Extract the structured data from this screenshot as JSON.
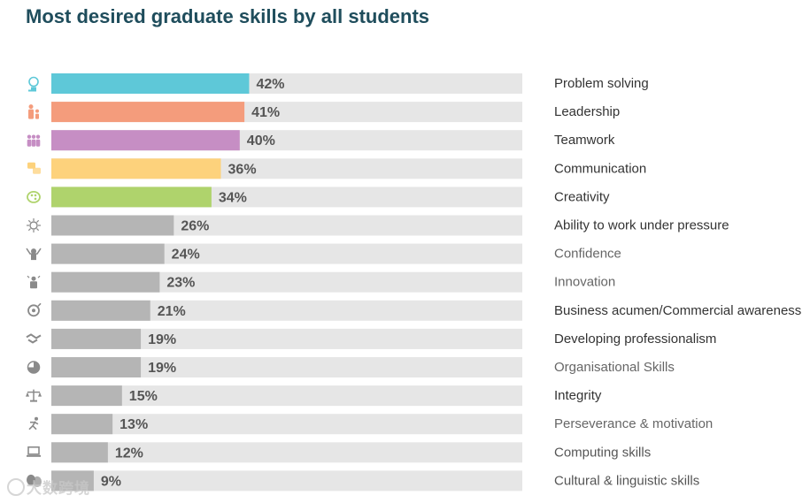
{
  "chart_data": {
    "type": "bar",
    "orientation": "horizontal",
    "title": "Most desired graduate skills by all students",
    "categories": [
      "Problem solving",
      "Leadership",
      "Teamwork",
      "Communication",
      "Creativity",
      "Ability to work under pressure",
      "Confidence",
      "Innovation",
      "Business acumen/Commercial awareness",
      "Developing professionalism",
      "Organisational Skills",
      "Integrity",
      "Perseverance & motivation",
      "Computing skills",
      "Cultural & linguistic skills"
    ],
    "values": [
      42,
      41,
      40,
      36,
      34,
      26,
      24,
      23,
      21,
      19,
      19,
      15,
      13,
      12,
      9
    ],
    "value_labels": [
      "42%",
      "41%",
      "40%",
      "36%",
      "34%",
      "26%",
      "24%",
      "23%",
      "21%",
      "19%",
      "19%",
      "15%",
      "13%",
      "12%",
      "9%"
    ],
    "xlim": [
      0,
      100
    ],
    "bar_colors": [
      "#5ec8d8",
      "#f49c7c",
      "#c68ec4",
      "#fdd27c",
      "#afd36c",
      "#b5b5b5",
      "#b5b5b5",
      "#b5b5b5",
      "#b5b5b5",
      "#b5b5b5",
      "#b5b5b5",
      "#b5b5b5",
      "#b5b5b5",
      "#b5b5b5",
      "#b5b5b5"
    ],
    "track_color": "#e6e6e6",
    "label_colors": [
      "#333333",
      "#333333",
      "#333333",
      "#333333",
      "#333333",
      "#333333",
      "#666666",
      "#666666",
      "#333333",
      "#333333",
      "#666666",
      "#333333",
      "#666666",
      "#555555",
      "#555555"
    ],
    "icons": [
      "lightbulb-head-icon",
      "leader-people-icon",
      "team-people-icon",
      "speech-bubbles-icon",
      "palette-icon",
      "pressure-burst-icon",
      "confident-person-icon",
      "innovation-lamp-icon",
      "business-gear-icon",
      "handshake-icon",
      "pie-chart-icon",
      "scales-icon",
      "running-person-icon",
      "laptop-icon",
      "theatre-masks-icon"
    ],
    "icon_colors": [
      "#5ec8d8",
      "#f49c7c",
      "#c68ec4",
      "#fdd27c",
      "#afd36c",
      "#8a8a8a",
      "#8a8a8a",
      "#8a8a8a",
      "#8a8a8a",
      "#8a8a8a",
      "#8a8a8a",
      "#8a8a8a",
      "#8a8a8a",
      "#8a8a8a",
      "#8a8a8a"
    ],
    "grid": false,
    "legend": "none"
  },
  "watermark": {
    "text": "大数跨境"
  }
}
